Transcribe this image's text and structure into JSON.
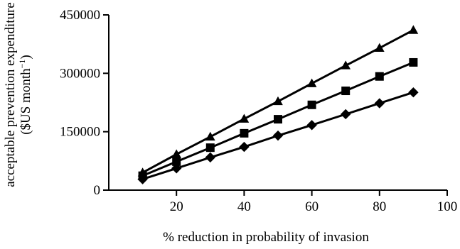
{
  "chart_data": {
    "type": "line",
    "xlabel": "% reduction in probability of invasion",
    "ylabel_line1": "acceptable prevention expenditure",
    "ylabel_line2_prefix": "($US month",
    "ylabel_line2_sup": "−1",
    "ylabel_line2_suffix": ")",
    "xlim": [
      0,
      100
    ],
    "ylim": [
      0,
      450000
    ],
    "x_ticks": [
      20,
      40,
      60,
      80,
      100
    ],
    "x_tick_labels": [
      "20",
      "40",
      "60",
      "80",
      "100"
    ],
    "y_ticks": [
      0,
      150000,
      300000,
      450000
    ],
    "y_tick_labels": [
      "0",
      "150000",
      "300000",
      "450000"
    ],
    "x": [
      10,
      20,
      30,
      40,
      50,
      60,
      70,
      80,
      90
    ],
    "grid": false,
    "series": [
      {
        "marker": "triangle",
        "values": [
          45000,
          92000,
          137000,
          183000,
          228000,
          274000,
          320000,
          365000,
          411000
        ]
      },
      {
        "marker": "square",
        "values": [
          37000,
          73000,
          109000,
          146000,
          182000,
          219000,
          255000,
          292000,
          328000
        ]
      },
      {
        "marker": "diamond",
        "values": [
          28000,
          56000,
          84000,
          111000,
          140000,
          167000,
          195000,
          223000,
          251000
        ]
      }
    ]
  }
}
